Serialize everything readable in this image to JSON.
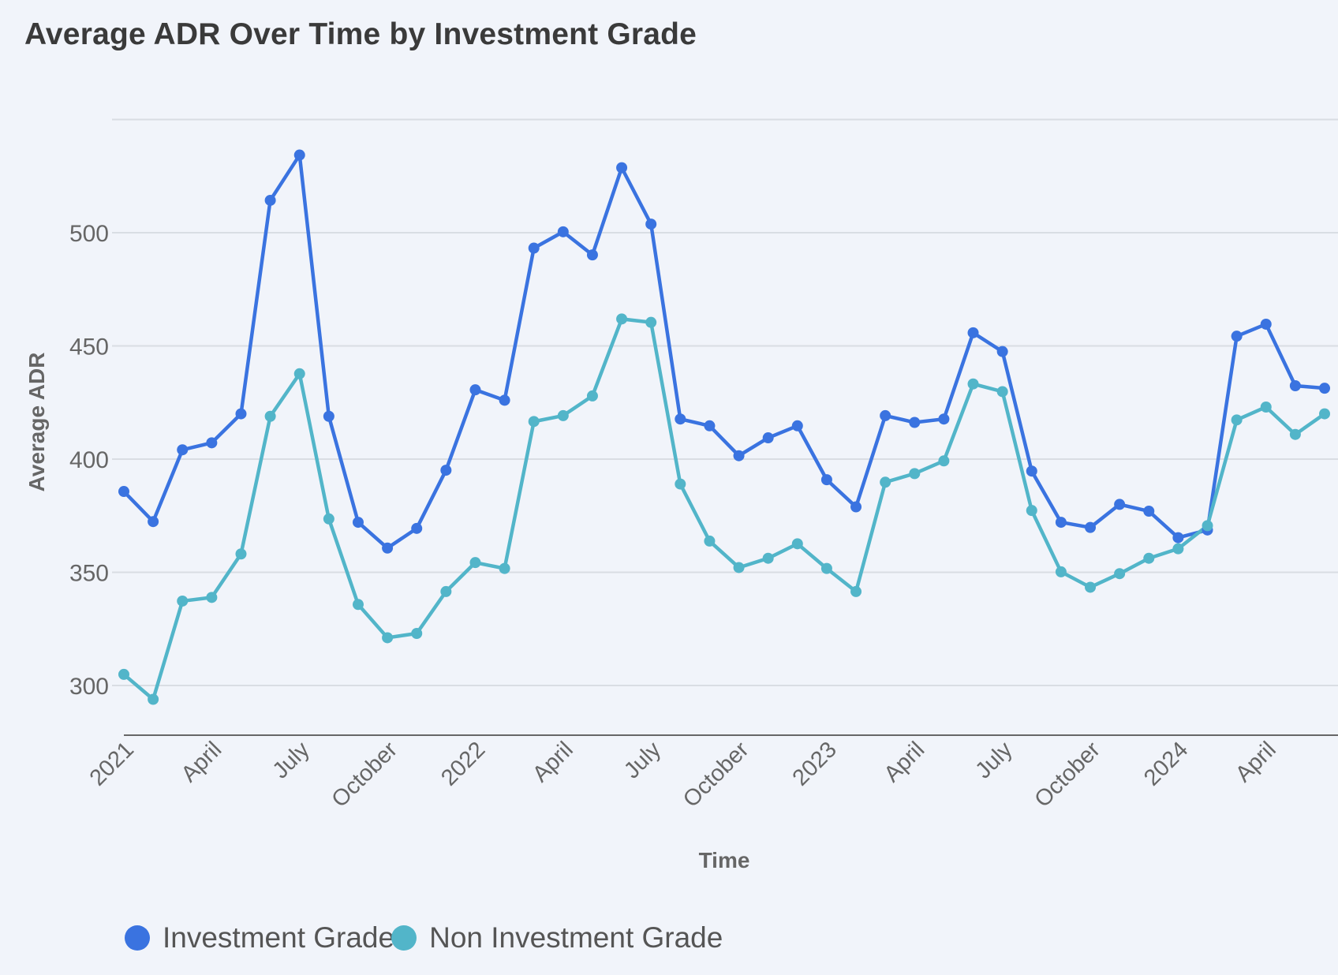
{
  "chart_data": {
    "type": "line",
    "title": "Average ADR Over Time by Investment Grade",
    "xlabel": "Time",
    "ylabel": "Average ADR",
    "ylim": [
      278,
      550
    ],
    "yticks": [
      300,
      350,
      400,
      450,
      500
    ],
    "grid": true,
    "legend_position": "bottom-left",
    "x_start": "2021-01",
    "x_frequency": "monthly",
    "xtick_labels": [
      {
        "index": 0,
        "label": "2021"
      },
      {
        "index": 3,
        "label": "April"
      },
      {
        "index": 6,
        "label": "July"
      },
      {
        "index": 9,
        "label": "October"
      },
      {
        "index": 12,
        "label": "2022"
      },
      {
        "index": 15,
        "label": "April"
      },
      {
        "index": 18,
        "label": "July"
      },
      {
        "index": 21,
        "label": "October"
      },
      {
        "index": 24,
        "label": "2023"
      },
      {
        "index": 27,
        "label": "April"
      },
      {
        "index": 30,
        "label": "July"
      },
      {
        "index": 33,
        "label": "October"
      },
      {
        "index": 36,
        "label": "2024"
      },
      {
        "index": 39,
        "label": "April"
      }
    ],
    "series": [
      {
        "name": "Investment Grade",
        "color": "#3a73e0",
        "values": [
          385.7,
          372.4,
          404.1,
          407.2,
          420.0,
          514.3,
          534.3,
          418.9,
          372.1,
          360.7,
          369.4,
          395.1,
          430.6,
          426.0,
          493.2,
          500.4,
          490.2,
          528.7,
          503.8,
          417.7,
          414.7,
          401.5,
          409.4,
          414.7,
          390.9,
          378.9,
          419.2,
          416.2,
          417.7,
          455.8,
          447.5,
          394.7,
          372.1,
          369.8,
          380.0,
          377.0,
          365.3,
          368.7,
          454.3,
          459.6,
          432.4,
          431.3
        ]
      },
      {
        "name": "Non Investment Grade",
        "color": "#52b5c9",
        "values": [
          304.9,
          293.9,
          337.3,
          338.9,
          358.1,
          418.9,
          437.7,
          373.6,
          335.8,
          321.1,
          323.0,
          341.5,
          354.3,
          351.7,
          416.6,
          419.2,
          427.9,
          461.9,
          460.4,
          389.0,
          363.8,
          352.1,
          356.2,
          362.6,
          351.7,
          341.5,
          389.8,
          393.6,
          399.2,
          433.2,
          429.8,
          377.3,
          350.2,
          343.4,
          349.4,
          356.2,
          360.4,
          370.6,
          417.3,
          423.0,
          410.9,
          420.0
        ]
      }
    ]
  }
}
